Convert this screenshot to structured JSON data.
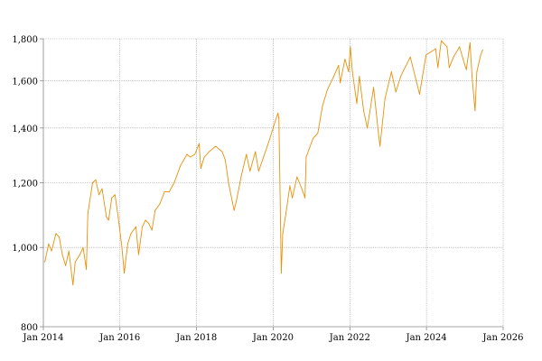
{
  "chart_data": {
    "type": "line",
    "title": "",
    "xlabel": "",
    "ylabel": "",
    "y_scale": "log",
    "grid": true,
    "legend": "none",
    "xlim": [
      "2014-01-01",
      "2026-01-01"
    ],
    "ylim": [
      800,
      1800
    ],
    "x_ticks": [
      {
        "value": "2014-01-01",
        "label": "Jan 2014"
      },
      {
        "value": "2016-01-01",
        "label": "Jan 2016"
      },
      {
        "value": "2018-01-01",
        "label": "Jan 2018"
      },
      {
        "value": "2020-01-01",
        "label": "Jan 2020"
      },
      {
        "value": "2022-01-01",
        "label": "Jan 2022"
      },
      {
        "value": "2024-01-01",
        "label": "Jan 2024"
      },
      {
        "value": "2026-01-01",
        "label": "Jan 2026"
      }
    ],
    "y_ticks": [
      {
        "value": 800,
        "label": "800"
      },
      {
        "value": 1000,
        "label": "1,000"
      },
      {
        "value": 1200,
        "label": "1,200"
      },
      {
        "value": 1400,
        "label": "1,400"
      },
      {
        "value": 1600,
        "label": "1,600"
      },
      {
        "value": 1800,
        "label": "1,800"
      }
    ],
    "series": [
      {
        "color": "#e8900a",
        "points": [
          [
            "2014-01-15",
            960
          ],
          [
            "2014-02-20",
            1010
          ],
          [
            "2014-03-20",
            990
          ],
          [
            "2014-05-01",
            1040
          ],
          [
            "2014-06-01",
            1030
          ],
          [
            "2014-07-01",
            980
          ],
          [
            "2014-08-01",
            950
          ],
          [
            "2014-09-01",
            990
          ],
          [
            "2014-10-10",
            900
          ],
          [
            "2014-11-01",
            960
          ],
          [
            "2014-12-15",
            980
          ],
          [
            "2015-01-15",
            1000
          ],
          [
            "2015-02-15",
            940
          ],
          [
            "2015-03-01",
            1100
          ],
          [
            "2015-04-15",
            1200
          ],
          [
            "2015-05-15",
            1210
          ],
          [
            "2015-06-15",
            1160
          ],
          [
            "2015-07-15",
            1180
          ],
          [
            "2015-08-25",
            1090
          ],
          [
            "2015-09-15",
            1080
          ],
          [
            "2015-10-15",
            1150
          ],
          [
            "2015-11-15",
            1160
          ],
          [
            "2015-12-15",
            1090
          ],
          [
            "2016-01-20",
            1000
          ],
          [
            "2016-02-11",
            930
          ],
          [
            "2016-03-15",
            1010
          ],
          [
            "2016-04-15",
            1040
          ],
          [
            "2016-06-01",
            1060
          ],
          [
            "2016-06-27",
            980
          ],
          [
            "2016-08-01",
            1060
          ],
          [
            "2016-09-01",
            1080
          ],
          [
            "2016-10-01",
            1070
          ],
          [
            "2016-11-01",
            1050
          ],
          [
            "2016-12-01",
            1110
          ],
          [
            "2017-01-15",
            1130
          ],
          [
            "2017-03-01",
            1170
          ],
          [
            "2017-04-15",
            1170
          ],
          [
            "2017-06-01",
            1200
          ],
          [
            "2017-08-01",
            1260
          ],
          [
            "2017-10-01",
            1300
          ],
          [
            "2017-11-01",
            1290
          ],
          [
            "2017-12-15",
            1300
          ],
          [
            "2018-01-25",
            1340
          ],
          [
            "2018-02-10",
            1250
          ],
          [
            "2018-03-15",
            1290
          ],
          [
            "2018-05-01",
            1310
          ],
          [
            "2018-07-01",
            1330
          ],
          [
            "2018-09-01",
            1310
          ],
          [
            "2018-10-01",
            1280
          ],
          [
            "2018-11-01",
            1200
          ],
          [
            "2018-12-24",
            1110
          ],
          [
            "2019-01-15",
            1140
          ],
          [
            "2019-03-01",
            1220
          ],
          [
            "2019-04-20",
            1300
          ],
          [
            "2019-05-25",
            1240
          ],
          [
            "2019-07-15",
            1310
          ],
          [
            "2019-08-15",
            1240
          ],
          [
            "2019-10-01",
            1290
          ],
          [
            "2019-12-01",
            1360
          ],
          [
            "2020-01-15",
            1420
          ],
          [
            "2020-02-15",
            1460
          ],
          [
            "2020-02-24",
            1440
          ],
          [
            "2020-03-05",
            1200
          ],
          [
            "2020-03-18",
            930
          ],
          [
            "2020-04-01",
            1040
          ],
          [
            "2020-05-01",
            1100
          ],
          [
            "2020-06-08",
            1190
          ],
          [
            "2020-07-01",
            1150
          ],
          [
            "2020-08-15",
            1220
          ],
          [
            "2020-09-30",
            1180
          ],
          [
            "2020-10-30",
            1150
          ],
          [
            "2020-11-10",
            1290
          ],
          [
            "2021-01-15",
            1360
          ],
          [
            "2021-03-01",
            1380
          ],
          [
            "2021-04-15",
            1490
          ],
          [
            "2021-06-01",
            1560
          ],
          [
            "2021-08-01",
            1620
          ],
          [
            "2021-09-15",
            1670
          ],
          [
            "2021-10-01",
            1590
          ],
          [
            "2021-11-15",
            1700
          ],
          [
            "2021-12-20",
            1640
          ],
          [
            "2022-01-05",
            1760
          ],
          [
            "2022-01-25",
            1640
          ],
          [
            "2022-03-08",
            1500
          ],
          [
            "2022-04-01",
            1620
          ],
          [
            "2022-05-12",
            1470
          ],
          [
            "2022-06-16",
            1400
          ],
          [
            "2022-08-15",
            1570
          ],
          [
            "2022-09-30",
            1380
          ],
          [
            "2022-10-15",
            1330
          ],
          [
            "2022-12-01",
            1520
          ],
          [
            "2023-02-01",
            1640
          ],
          [
            "2023-03-15",
            1550
          ],
          [
            "2023-05-01",
            1620
          ],
          [
            "2023-07-31",
            1710
          ],
          [
            "2023-10-27",
            1540
          ],
          [
            "2023-12-28",
            1720
          ],
          [
            "2024-03-28",
            1750
          ],
          [
            "2024-04-19",
            1660
          ],
          [
            "2024-05-21",
            1790
          ],
          [
            "2024-07-15",
            1760
          ],
          [
            "2024-08-05",
            1660
          ],
          [
            "2024-09-15",
            1710
          ],
          [
            "2024-11-11",
            1760
          ],
          [
            "2024-12-15",
            1700
          ],
          [
            "2025-01-15",
            1650
          ],
          [
            "2025-02-19",
            1780
          ],
          [
            "2025-03-10",
            1620
          ],
          [
            "2025-04-08",
            1470
          ],
          [
            "2025-04-25",
            1640
          ],
          [
            "2025-06-01",
            1720
          ],
          [
            "2025-06-20",
            1745
          ]
        ]
      }
    ]
  }
}
